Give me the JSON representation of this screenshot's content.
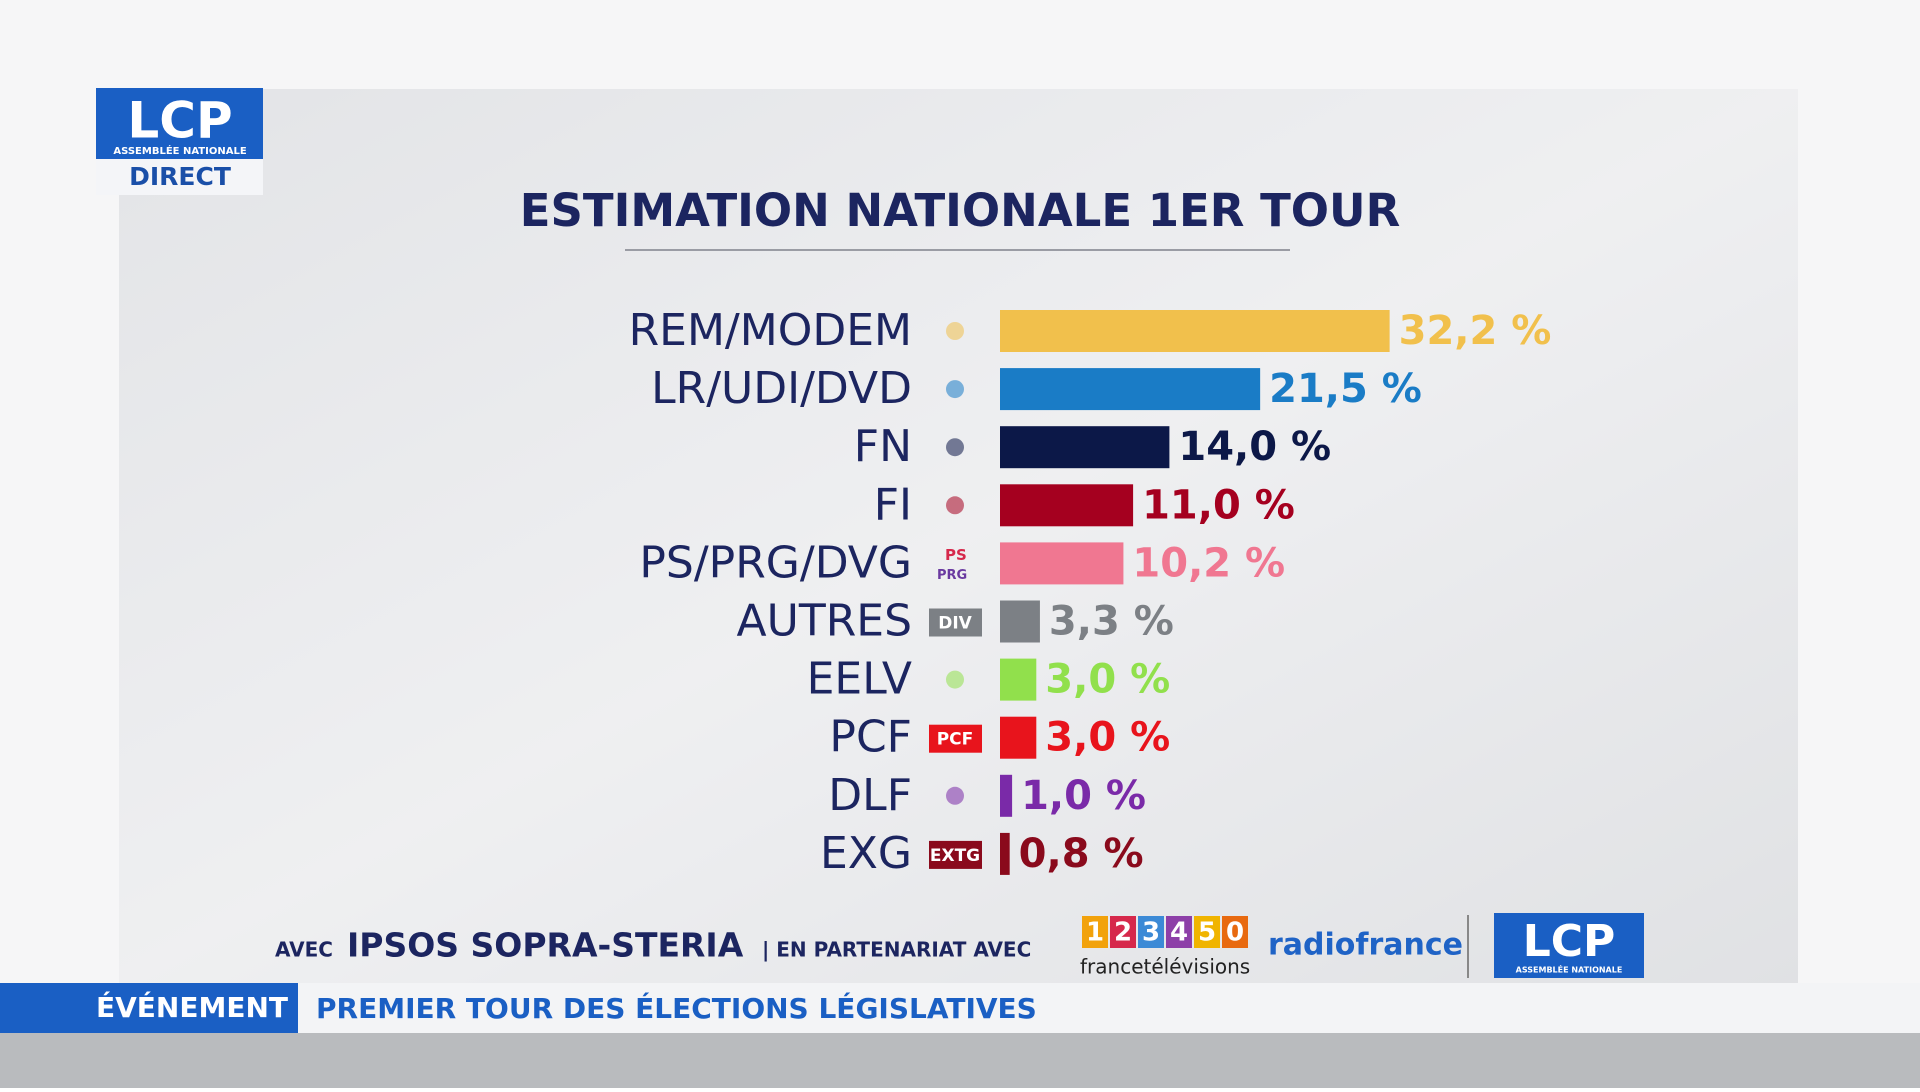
{
  "chart_data": {
    "type": "hbar",
    "title": "ESTIMATION NATIONALE 1ER TOUR",
    "categories": [
      "REM/MODEM",
      "LR/UDI/DVD",
      "FN",
      "FI",
      "PS/PRG/DVG",
      "AUTRES",
      "EELV",
      "PCF",
      "DLF",
      "EXG"
    ],
    "values": [
      32.2,
      21.5,
      14.0,
      11.0,
      10.2,
      3.3,
      3.0,
      3.0,
      1.0,
      0.8
    ],
    "value_labels": [
      "32,2 %",
      "21,5 %",
      "14,0 %",
      "11,0 %",
      "10,2 %",
      "3,3 %",
      "3,0 %",
      "3,0 %",
      "1,0 %",
      "0,8 %"
    ],
    "colors": [
      "#f1c04c",
      "#1a7cc6",
      "#0c1848",
      "#a5001f",
      "#f07791",
      "#7c8085",
      "#91e04c",
      "#e8141c",
      "#7a2aa8",
      "#8a0a1c"
    ]
  },
  "party_logos": {
    "AUTRES": "DIV",
    "PCF": "PCF",
    "EXG": "EXTG",
    "PS": "PS",
    "PRG": "PRG"
  },
  "channel": {
    "name": "LCP",
    "subtitle": "ASSEMBLÉE NATIONALE",
    "status": "DIRECT"
  },
  "credits": {
    "with": "AVEC",
    "pollster": "IPSOS SOPRA-STERIA",
    "partnership": "| EN PARTENARIAT AVEC",
    "ftv_digits": [
      "1",
      "2",
      "3",
      "4",
      "5",
      "0"
    ],
    "ftv": "francetélévisions",
    "radio": "radiofrance"
  },
  "banner": {
    "tag": "ÉVÉNEMENT",
    "headline": "PREMIER TOUR DES ÉLECTIONS LÉGISLATIVES"
  }
}
